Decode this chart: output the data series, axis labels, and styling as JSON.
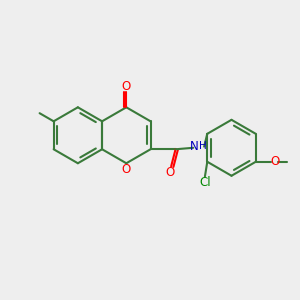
{
  "bg_color": "#eeeeee",
  "bond_color": "#3a7a3a",
  "bond_width": 1.5,
  "atom_colors": {
    "O": "#ff0000",
    "N": "#0000bb",
    "Cl": "#008800",
    "C": "#3a7a3a"
  },
  "font_size": 8.5,
  "xlim": [
    0,
    10
  ],
  "ylim": [
    0,
    10
  ]
}
